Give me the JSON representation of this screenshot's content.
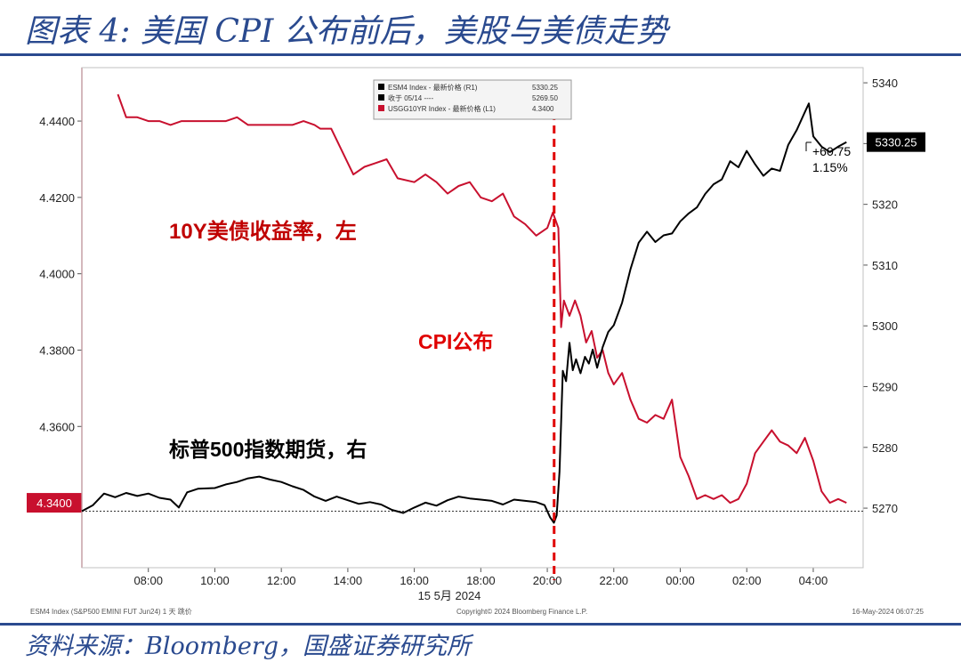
{
  "header": {
    "title": "图表 4:  美国 CPI 公布前后，美股与美债走势"
  },
  "footer": {
    "source": "资料来源：Bloomberg，国盛证券研究所",
    "left_note": "ESM4 Index (S&P500 EMINI FUT  Jun24)  1 天  跳价",
    "center_note": "Copyright© 2024 Bloomberg Finance L.P.",
    "right_note": "16-May-2024 06:07:25"
  },
  "chart_data": {
    "type": "line",
    "x_ticks": [
      "08:00",
      "10:00",
      "12:00",
      "14:00",
      "16:00",
      "18:00",
      "20:00",
      "22:00",
      "00:00",
      "02:00",
      "04:00"
    ],
    "x_date_label": "15 5月 2024",
    "left_axis": {
      "ticks": [
        "4.4400",
        "4.4200",
        "4.4000",
        "4.3800",
        "4.3600"
      ],
      "range": [
        4.323,
        4.454
      ],
      "current_label": "4.3400",
      "color": "#c8102e"
    },
    "right_axis": {
      "ticks": [
        "5340",
        "5330",
        "5320",
        "5310",
        "5300",
        "5290",
        "5280",
        "5270"
      ],
      "range": [
        5260.2,
        5342.5
      ],
      "current_label": "5330.25"
    },
    "series": [
      {
        "name": "USGG10YR Index - 最新价格 (L1)",
        "axis": "left",
        "color": "#c8102e",
        "points": [
          [
            "07:05",
            4.447
          ],
          [
            "07:20",
            4.441
          ],
          [
            "07:40",
            4.441
          ],
          [
            "08:00",
            4.44
          ],
          [
            "08:20",
            4.44
          ],
          [
            "08:40",
            4.439
          ],
          [
            "09:00",
            4.44
          ],
          [
            "09:30",
            4.44
          ],
          [
            "10:00",
            4.44
          ],
          [
            "10:20",
            4.44
          ],
          [
            "10:40",
            4.441
          ],
          [
            "11:00",
            4.439
          ],
          [
            "11:30",
            4.439
          ],
          [
            "12:00",
            4.439
          ],
          [
            "12:20",
            4.439
          ],
          [
            "12:40",
            4.44
          ],
          [
            "13:00",
            4.439
          ],
          [
            "13:10",
            4.438
          ],
          [
            "13:30",
            4.438
          ],
          [
            "13:50",
            4.432
          ],
          [
            "14:10",
            4.426
          ],
          [
            "14:30",
            4.428
          ],
          [
            "14:50",
            4.429
          ],
          [
            "15:10",
            4.43
          ],
          [
            "15:30",
            4.425
          ],
          [
            "16:00",
            4.424
          ],
          [
            "16:20",
            4.426
          ],
          [
            "16:40",
            4.424
          ],
          [
            "17:00",
            4.421
          ],
          [
            "17:20",
            4.423
          ],
          [
            "17:40",
            4.424
          ],
          [
            "18:00",
            4.42
          ],
          [
            "18:20",
            4.419
          ],
          [
            "18:40",
            4.421
          ],
          [
            "19:00",
            4.415
          ],
          [
            "19:20",
            4.413
          ],
          [
            "19:40",
            4.41
          ],
          [
            "20:00",
            4.412
          ],
          [
            "20:10",
            4.416
          ],
          [
            "20:20",
            4.412
          ],
          [
            "20:25",
            4.386
          ],
          [
            "20:30",
            4.393
          ],
          [
            "20:40",
            4.389
          ],
          [
            "20:50",
            4.393
          ],
          [
            "21:00",
            4.389
          ],
          [
            "21:10",
            4.382
          ],
          [
            "21:20",
            4.385
          ],
          [
            "21:30",
            4.378
          ],
          [
            "21:40",
            4.38
          ],
          [
            "21:50",
            4.374
          ],
          [
            "22:00",
            4.371
          ],
          [
            "22:15",
            4.374
          ],
          [
            "22:30",
            4.367
          ],
          [
            "22:45",
            4.362
          ],
          [
            "23:00",
            4.361
          ],
          [
            "23:15",
            4.363
          ],
          [
            "23:30",
            4.362
          ],
          [
            "23:45",
            4.367
          ],
          [
            "00:00",
            4.352
          ],
          [
            "00:15",
            4.347
          ],
          [
            "00:30",
            4.341
          ],
          [
            "00:45",
            4.342
          ],
          [
            "01:00",
            4.341
          ],
          [
            "01:15",
            4.342
          ],
          [
            "01:30",
            4.34
          ],
          [
            "01:45",
            4.341
          ],
          [
            "02:00",
            4.345
          ],
          [
            "02:15",
            4.353
          ],
          [
            "02:30",
            4.356
          ],
          [
            "02:45",
            4.359
          ],
          [
            "03:00",
            4.356
          ],
          [
            "03:15",
            4.355
          ],
          [
            "03:30",
            4.353
          ],
          [
            "03:45",
            4.357
          ],
          [
            "04:00",
            4.351
          ],
          [
            "04:15",
            4.343
          ],
          [
            "04:30",
            4.34
          ],
          [
            "04:45",
            4.341
          ],
          [
            "05:00",
            4.34
          ]
        ]
      },
      {
        "name": "ESM4 Index - 最新价格 (R1)",
        "axis": "right",
        "color": "#000000",
        "points": [
          [
            "06:00",
            5269.5
          ],
          [
            "06:20",
            5270.5
          ],
          [
            "06:40",
            5272.4
          ],
          [
            "07:00",
            5271.8
          ],
          [
            "07:20",
            5272.5
          ],
          [
            "07:40",
            5272.0
          ],
          [
            "08:00",
            5272.4
          ],
          [
            "08:20",
            5271.7
          ],
          [
            "08:40",
            5271.4
          ],
          [
            "08:55",
            5270.1
          ],
          [
            "09:10",
            5272.6
          ],
          [
            "09:30",
            5273.2
          ],
          [
            "10:00",
            5273.3
          ],
          [
            "10:20",
            5273.9
          ],
          [
            "10:40",
            5274.3
          ],
          [
            "11:00",
            5274.9
          ],
          [
            "11:20",
            5275.2
          ],
          [
            "11:40",
            5274.7
          ],
          [
            "12:00",
            5274.3
          ],
          [
            "12:20",
            5273.6
          ],
          [
            "12:40",
            5273.0
          ],
          [
            "13:00",
            5271.9
          ],
          [
            "13:20",
            5271.2
          ],
          [
            "13:40",
            5271.9
          ],
          [
            "14:00",
            5271.3
          ],
          [
            "14:20",
            5270.7
          ],
          [
            "14:40",
            5271.0
          ],
          [
            "15:00",
            5270.6
          ],
          [
            "15:20",
            5269.7
          ],
          [
            "15:40",
            5269.2
          ],
          [
            "16:00",
            5270.1
          ],
          [
            "16:20",
            5270.9
          ],
          [
            "16:40",
            5270.4
          ],
          [
            "17:00",
            5271.3
          ],
          [
            "17:20",
            5271.9
          ],
          [
            "17:40",
            5271.6
          ],
          [
            "18:00",
            5271.4
          ],
          [
            "18:20",
            5271.2
          ],
          [
            "18:40",
            5270.6
          ],
          [
            "19:00",
            5271.4
          ],
          [
            "19:20",
            5271.2
          ],
          [
            "19:40",
            5271.0
          ],
          [
            "19:55",
            5270.5
          ],
          [
            "20:05",
            5268.5
          ],
          [
            "20:12",
            5267.6
          ],
          [
            "20:17",
            5268.8
          ],
          [
            "20:22",
            5276.0
          ],
          [
            "20:28",
            5292.6
          ],
          [
            "20:34",
            5290.9
          ],
          [
            "20:40",
            5297.2
          ],
          [
            "20:46",
            5292.7
          ],
          [
            "20:52",
            5294.5
          ],
          [
            "21:00",
            5292.2
          ],
          [
            "21:08",
            5294.9
          ],
          [
            "21:15",
            5293.8
          ],
          [
            "21:22",
            5296.1
          ],
          [
            "21:30",
            5293.1
          ],
          [
            "21:40",
            5296.5
          ],
          [
            "21:50",
            5299.0
          ],
          [
            "22:00",
            5300.1
          ],
          [
            "22:15",
            5303.8
          ],
          [
            "22:30",
            5309.3
          ],
          [
            "22:45",
            5313.7
          ],
          [
            "23:00",
            5315.5
          ],
          [
            "23:15",
            5313.8
          ],
          [
            "23:30",
            5314.9
          ],
          [
            "23:45",
            5315.2
          ],
          [
            "00:00",
            5317.2
          ],
          [
            "00:15",
            5318.5
          ],
          [
            "00:30",
            5319.5
          ],
          [
            "00:45",
            5321.7
          ],
          [
            "01:00",
            5323.3
          ],
          [
            "01:15",
            5324.1
          ],
          [
            "01:30",
            5327.1
          ],
          [
            "01:45",
            5326.1
          ],
          [
            "02:00",
            5328.8
          ],
          [
            "02:15",
            5326.6
          ],
          [
            "02:30",
            5324.7
          ],
          [
            "02:45",
            5325.9
          ],
          [
            "03:00",
            5325.5
          ],
          [
            "03:15",
            5329.8
          ],
          [
            "03:30",
            5332.2
          ],
          [
            "03:45",
            5335.2
          ],
          [
            "03:52",
            5336.6
          ],
          [
            "04:00",
            5331.2
          ],
          [
            "04:15",
            5329.5
          ],
          [
            "04:30",
            5328.6
          ],
          [
            "04:45",
            5329.5
          ],
          [
            "05:00",
            5330.25
          ]
        ]
      }
    ],
    "legend": {
      "placement": "top-center",
      "rows": [
        {
          "label": "ESM4 Index - 最新价格 (R1)",
          "value": "5330.25",
          "color": "#000000"
        },
        {
          "label": "收于 05/14 ----",
          "value": "5269.50",
          "color": "#000000"
        },
        {
          "label": "USGG10YR Index - 最新价格 (L1)",
          "value": "4.3400",
          "color": "#c8102e"
        }
      ]
    },
    "reference_line": {
      "label": "收于 05/14",
      "value": 5269.5,
      "axis": "right",
      "style": "dotted"
    },
    "event_marker": {
      "time": "20:30",
      "label": "CPI公布",
      "color": "#e00000"
    },
    "annotations": [
      {
        "text": "10Y美债收益率，左",
        "color": "#c00000"
      },
      {
        "text": "CPI公布",
        "color": "#e00000"
      },
      {
        "text": "标普500指数期货，右",
        "color": "#000000"
      },
      {
        "text": "+60.75",
        "color": "#000000"
      },
      {
        "text": "1.15%",
        "color": "#000000"
      }
    ]
  }
}
